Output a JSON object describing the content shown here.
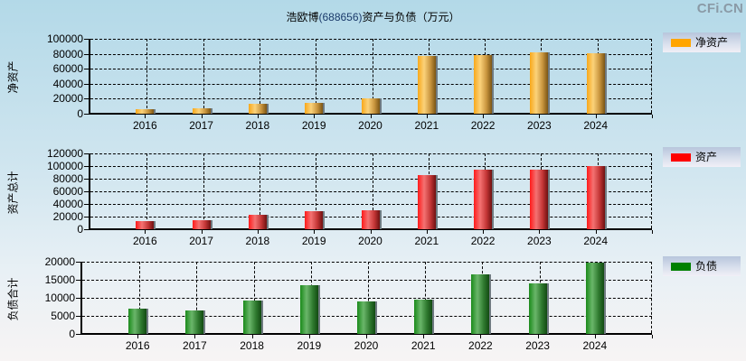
{
  "title": {
    "company": "浩欧博",
    "code": "(688656)",
    "suffix": "资产与负债（万元）"
  },
  "watermark": "CFi.CN",
  "colors": {
    "net_assets": "#ffa500",
    "total_assets": "#ff0000",
    "total_liabilities": "#008000"
  },
  "chart_data": [
    {
      "type": "bar",
      "title": "浩欧博(688656)资产与负债（万元）",
      "ylabel": "净资产",
      "xlabel": "",
      "legend": "净资产",
      "legend_position": "right",
      "grid": true,
      "categories": [
        "2016",
        "2017",
        "2018",
        "2019",
        "2020",
        "2021",
        "2022",
        "2023",
        "2024"
      ],
      "values": [
        6000,
        7200,
        13300,
        14500,
        21000,
        77000,
        78300,
        81900,
        80700
      ],
      "ylim": [
        0,
        100000
      ],
      "yticks": [
        "0",
        "20000",
        "40000",
        "60000",
        "80000",
        "100000"
      ]
    },
    {
      "type": "bar",
      "ylabel": "资产总计",
      "xlabel": "",
      "legend": "资产",
      "legend_position": "right",
      "grid": true,
      "categories": [
        "2016",
        "2017",
        "2018",
        "2019",
        "2020",
        "2021",
        "2022",
        "2023",
        "2024"
      ],
      "values": [
        13000,
        14300,
        22900,
        28600,
        30000,
        86000,
        94300,
        94300,
        100000
      ],
      "ylim": [
        0,
        120000
      ],
      "yticks": [
        "0",
        "20000",
        "40000",
        "60000",
        "80000",
        "100000",
        "120000"
      ]
    },
    {
      "type": "bar",
      "ylabel": "负债合计",
      "xlabel": "",
      "legend": "负债",
      "legend_position": "right",
      "grid": true,
      "categories": [
        "2016",
        "2017",
        "2018",
        "2019",
        "2020",
        "2021",
        "2022",
        "2023",
        "2024"
      ],
      "values": [
        7000,
        6500,
        9200,
        13500,
        9000,
        9500,
        16500,
        14000,
        19800
      ],
      "ylim": [
        0,
        20000
      ],
      "yticks": [
        "0",
        "5000",
        "10000",
        "15000",
        "20000"
      ]
    }
  ]
}
